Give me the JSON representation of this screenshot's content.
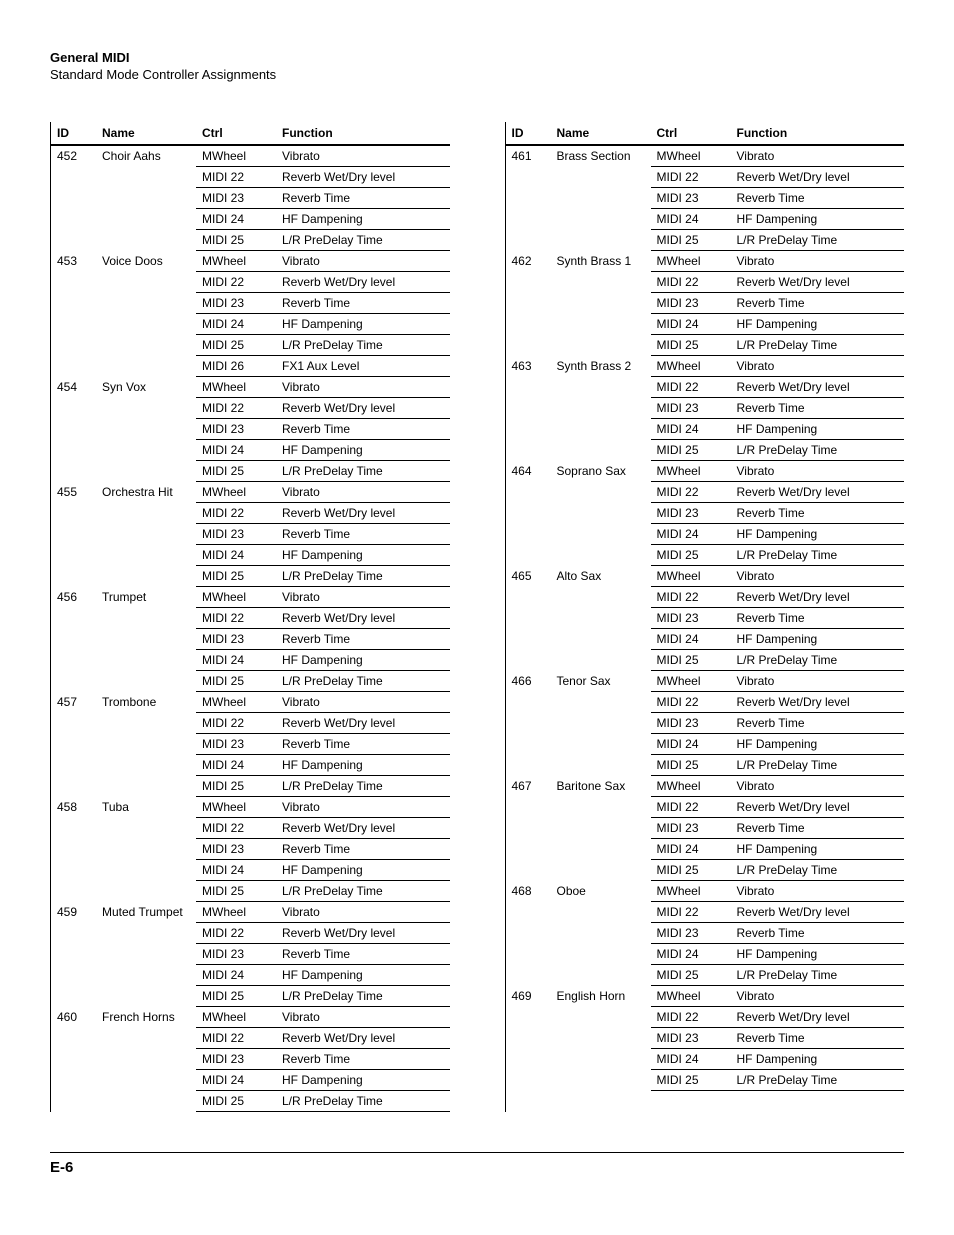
{
  "header": {
    "title": "General MIDI",
    "subtitle": "Standard Mode Controller Assignments"
  },
  "footer": {
    "page": "E-6"
  },
  "columns_head": {
    "id": "ID",
    "name": "Name",
    "ctrl": "Ctrl",
    "func": "Function"
  },
  "instruments_left": [
    {
      "id": "452",
      "name": "Choir Aahs",
      "rows": [
        {
          "ctrl": "MWheel",
          "func": "Vibrato"
        },
        {
          "ctrl": "MIDI 22",
          "func": "Reverb Wet/Dry level"
        },
        {
          "ctrl": "MIDI 23",
          "func": "Reverb Time"
        },
        {
          "ctrl": "MIDI 24",
          "func": "HF Dampening"
        },
        {
          "ctrl": "MIDI 25",
          "func": "L/R PreDelay Time"
        }
      ]
    },
    {
      "id": "453",
      "name": "Voice Doos",
      "rows": [
        {
          "ctrl": "MWheel",
          "func": "Vibrato"
        },
        {
          "ctrl": "MIDI 22",
          "func": "Reverb Wet/Dry level"
        },
        {
          "ctrl": "MIDI 23",
          "func": "Reverb Time"
        },
        {
          "ctrl": "MIDI 24",
          "func": "HF Dampening"
        },
        {
          "ctrl": "MIDI 25",
          "func": "L/R PreDelay Time"
        },
        {
          "ctrl": "MIDI 26",
          "func": "FX1 Aux Level"
        }
      ]
    },
    {
      "id": "454",
      "name": "Syn Vox",
      "rows": [
        {
          "ctrl": "MWheel",
          "func": "Vibrato"
        },
        {
          "ctrl": "MIDI 22",
          "func": "Reverb Wet/Dry level"
        },
        {
          "ctrl": "MIDI 23",
          "func": "Reverb Time"
        },
        {
          "ctrl": "MIDI 24",
          "func": "HF Dampening"
        },
        {
          "ctrl": "MIDI 25",
          "func": "L/R PreDelay Time"
        }
      ]
    },
    {
      "id": "455",
      "name": "Orchestra Hit",
      "rows": [
        {
          "ctrl": "MWheel",
          "func": "Vibrato"
        },
        {
          "ctrl": "MIDI 22",
          "func": "Reverb Wet/Dry level"
        },
        {
          "ctrl": "MIDI 23",
          "func": "Reverb Time"
        },
        {
          "ctrl": "MIDI 24",
          "func": "HF Dampening"
        },
        {
          "ctrl": "MIDI 25",
          "func": "L/R PreDelay Time"
        }
      ]
    },
    {
      "id": "456",
      "name": "Trumpet",
      "rows": [
        {
          "ctrl": "MWheel",
          "func": "Vibrato"
        },
        {
          "ctrl": "MIDI 22",
          "func": "Reverb Wet/Dry level"
        },
        {
          "ctrl": "MIDI 23",
          "func": "Reverb Time"
        },
        {
          "ctrl": "MIDI 24",
          "func": "HF Dampening"
        },
        {
          "ctrl": "MIDI 25",
          "func": "L/R PreDelay Time"
        }
      ]
    },
    {
      "id": "457",
      "name": "Trombone",
      "rows": [
        {
          "ctrl": "MWheel",
          "func": "Vibrato"
        },
        {
          "ctrl": "MIDI 22",
          "func": "Reverb Wet/Dry level"
        },
        {
          "ctrl": "MIDI 23",
          "func": "Reverb Time"
        },
        {
          "ctrl": "MIDI 24",
          "func": "HF Dampening"
        },
        {
          "ctrl": "MIDI 25",
          "func": "L/R PreDelay Time"
        }
      ]
    },
    {
      "id": "458",
      "name": "Tuba",
      "rows": [
        {
          "ctrl": "MWheel",
          "func": "Vibrato"
        },
        {
          "ctrl": "MIDI 22",
          "func": "Reverb Wet/Dry level"
        },
        {
          "ctrl": "MIDI 23",
          "func": "Reverb Time"
        },
        {
          "ctrl": "MIDI 24",
          "func": "HF Dampening"
        },
        {
          "ctrl": "MIDI 25",
          "func": "L/R PreDelay Time"
        }
      ]
    },
    {
      "id": "459",
      "name": "Muted Trumpet",
      "rows": [
        {
          "ctrl": "MWheel",
          "func": "Vibrato"
        },
        {
          "ctrl": "MIDI 22",
          "func": "Reverb Wet/Dry level"
        },
        {
          "ctrl": "MIDI 23",
          "func": "Reverb Time"
        },
        {
          "ctrl": "MIDI 24",
          "func": "HF Dampening"
        },
        {
          "ctrl": "MIDI 25",
          "func": "L/R PreDelay Time"
        }
      ]
    },
    {
      "id": "460",
      "name": "French Horns",
      "rows": [
        {
          "ctrl": "MWheel",
          "func": "Vibrato"
        },
        {
          "ctrl": "MIDI 22",
          "func": "Reverb Wet/Dry level"
        },
        {
          "ctrl": "MIDI 23",
          "func": "Reverb Time"
        },
        {
          "ctrl": "MIDI 24",
          "func": "HF Dampening"
        },
        {
          "ctrl": "MIDI 25",
          "func": "L/R PreDelay Time"
        }
      ]
    }
  ],
  "instruments_right": [
    {
      "id": "461",
      "name": "Brass Section",
      "rows": [
        {
          "ctrl": "MWheel",
          "func": "Vibrato"
        },
        {
          "ctrl": "MIDI 22",
          "func": "Reverb Wet/Dry level"
        },
        {
          "ctrl": "MIDI 23",
          "func": "Reverb Time"
        },
        {
          "ctrl": "MIDI 24",
          "func": "HF Dampening"
        },
        {
          "ctrl": "MIDI 25",
          "func": "L/R PreDelay Time"
        }
      ]
    },
    {
      "id": "462",
      "name": "Synth Brass 1",
      "rows": [
        {
          "ctrl": "MWheel",
          "func": "Vibrato"
        },
        {
          "ctrl": "MIDI 22",
          "func": "Reverb Wet/Dry level"
        },
        {
          "ctrl": "MIDI 23",
          "func": "Reverb Time"
        },
        {
          "ctrl": "MIDI 24",
          "func": "HF Dampening"
        },
        {
          "ctrl": "MIDI 25",
          "func": "L/R PreDelay Time"
        }
      ]
    },
    {
      "id": "463",
      "name": "Synth Brass 2",
      "rows": [
        {
          "ctrl": "MWheel",
          "func": "Vibrato"
        },
        {
          "ctrl": "MIDI 22",
          "func": "Reverb Wet/Dry level"
        },
        {
          "ctrl": "MIDI 23",
          "func": "Reverb Time"
        },
        {
          "ctrl": "MIDI 24",
          "func": "HF Dampening"
        },
        {
          "ctrl": "MIDI 25",
          "func": "L/R PreDelay Time"
        }
      ]
    },
    {
      "id": "464",
      "name": "Soprano Sax",
      "rows": [
        {
          "ctrl": "MWheel",
          "func": "Vibrato"
        },
        {
          "ctrl": "MIDI 22",
          "func": "Reverb Wet/Dry level"
        },
        {
          "ctrl": "MIDI 23",
          "func": "Reverb Time"
        },
        {
          "ctrl": "MIDI 24",
          "func": "HF Dampening"
        },
        {
          "ctrl": "MIDI 25",
          "func": "L/R PreDelay Time"
        }
      ]
    },
    {
      "id": "465",
      "name": "Alto Sax",
      "rows": [
        {
          "ctrl": "MWheel",
          "func": "Vibrato"
        },
        {
          "ctrl": "MIDI 22",
          "func": "Reverb Wet/Dry level"
        },
        {
          "ctrl": "MIDI 23",
          "func": "Reverb Time"
        },
        {
          "ctrl": "MIDI 24",
          "func": "HF Dampening"
        },
        {
          "ctrl": "MIDI 25",
          "func": "L/R PreDelay Time"
        }
      ]
    },
    {
      "id": "466",
      "name": "Tenor Sax",
      "rows": [
        {
          "ctrl": "MWheel",
          "func": "Vibrato"
        },
        {
          "ctrl": "MIDI 22",
          "func": "Reverb Wet/Dry level"
        },
        {
          "ctrl": "MIDI 23",
          "func": "Reverb Time"
        },
        {
          "ctrl": "MIDI 24",
          "func": "HF Dampening"
        },
        {
          "ctrl": "MIDI 25",
          "func": "L/R PreDelay Time"
        }
      ]
    },
    {
      "id": "467",
      "name": "Baritone Sax",
      "rows": [
        {
          "ctrl": "MWheel",
          "func": "Vibrato"
        },
        {
          "ctrl": "MIDI 22",
          "func": "Reverb Wet/Dry level"
        },
        {
          "ctrl": "MIDI 23",
          "func": "Reverb Time"
        },
        {
          "ctrl": "MIDI 24",
          "func": "HF Dampening"
        },
        {
          "ctrl": "MIDI 25",
          "func": "L/R PreDelay Time"
        }
      ]
    },
    {
      "id": "468",
      "name": "Oboe",
      "rows": [
        {
          "ctrl": "MWheel",
          "func": "Vibrato"
        },
        {
          "ctrl": "MIDI 22",
          "func": "Reverb Wet/Dry level"
        },
        {
          "ctrl": "MIDI 23",
          "func": "Reverb Time"
        },
        {
          "ctrl": "MIDI 24",
          "func": "HF Dampening"
        },
        {
          "ctrl": "MIDI 25",
          "func": "L/R PreDelay Time"
        }
      ]
    },
    {
      "id": "469",
      "name": "English Horn",
      "rows": [
        {
          "ctrl": "MWheel",
          "func": "Vibrato"
        },
        {
          "ctrl": "MIDI 22",
          "func": "Reverb Wet/Dry level"
        },
        {
          "ctrl": "MIDI 23",
          "func": "Reverb Time"
        },
        {
          "ctrl": "MIDI 24",
          "func": "HF Dampening"
        },
        {
          "ctrl": "MIDI 25",
          "func": "L/R PreDelay Time"
        }
      ]
    }
  ]
}
